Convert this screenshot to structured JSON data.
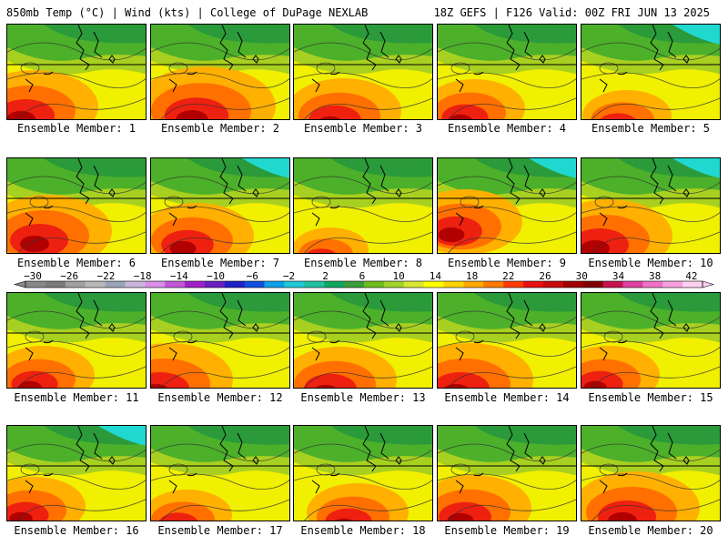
{
  "header": {
    "left_title": "850mb Temp (°C) | Wind (kts) | College of DuPage NEXLAB",
    "right_title": "18Z GEFS | F126 Valid: 00Z FRI JUN 13 2025"
  },
  "panel_label_prefix": "Ensemble Member: ",
  "members": [
    1,
    2,
    3,
    4,
    5,
    6,
    7,
    8,
    9,
    10,
    11,
    12,
    13,
    14,
    15,
    16,
    17,
    18,
    19,
    20
  ],
  "member_labels": [
    "Ensemble Member: 1",
    "Ensemble Member: 2",
    "Ensemble Member: 3",
    "Ensemble Member: 4",
    "Ensemble Member: 5",
    "Ensemble Member: 6",
    "Ensemble Member: 7",
    "Ensemble Member: 8",
    "Ensemble Member: 9",
    "Ensemble Member: 10",
    "Ensemble Member: 11",
    "Ensemble Member: 12",
    "Ensemble Member: 13",
    "Ensemble Member: 14",
    "Ensemble Member: 15",
    "Ensemble Member: 16",
    "Ensemble Member: 17",
    "Ensemble Member: 18",
    "Ensemble Member: 19",
    "Ensemble Member: 20"
  ],
  "colorbar": {
    "ticks": [
      "−30",
      "−26",
      "−22",
      "−18",
      "−14",
      "−10",
      "−6",
      "−2",
      "2",
      "6",
      "10",
      "14",
      "18",
      "22",
      "26",
      "30",
      "34",
      "38",
      "42"
    ],
    "colors": [
      "#888888",
      "#7a7a7a",
      "#a0a0a0",
      "#b8b8b8",
      "#9aa6b8",
      "#c9b6dc",
      "#d98ee8",
      "#c158d8",
      "#a020c8",
      "#6a1fc0",
      "#2020c8",
      "#1050e0",
      "#0fa0e8",
      "#20c8d8",
      "#20c0a0",
      "#10a860",
      "#3a9c3a",
      "#6cbc1c",
      "#a0d428",
      "#d8e830",
      "#ffff00",
      "#ffd400",
      "#ffaa00",
      "#ff7a00",
      "#ff3c00",
      "#e81010",
      "#c80a0a",
      "#a00000",
      "#800000",
      "#c81050",
      "#e040a0",
      "#f070c8",
      "#f8a0e0",
      "#ffd0f0"
    ]
  },
  "temperature_colors": {
    "cyan": "#20d8d0",
    "dark_green": "#2a9a3a",
    "green": "#4cb02a",
    "yellow_green": "#a8d020",
    "yellow": "#f0f000",
    "orange": "#ffb000",
    "dark_orange": "#ff7000",
    "red": "#ee2010",
    "dark_red": "#b00000"
  }
}
